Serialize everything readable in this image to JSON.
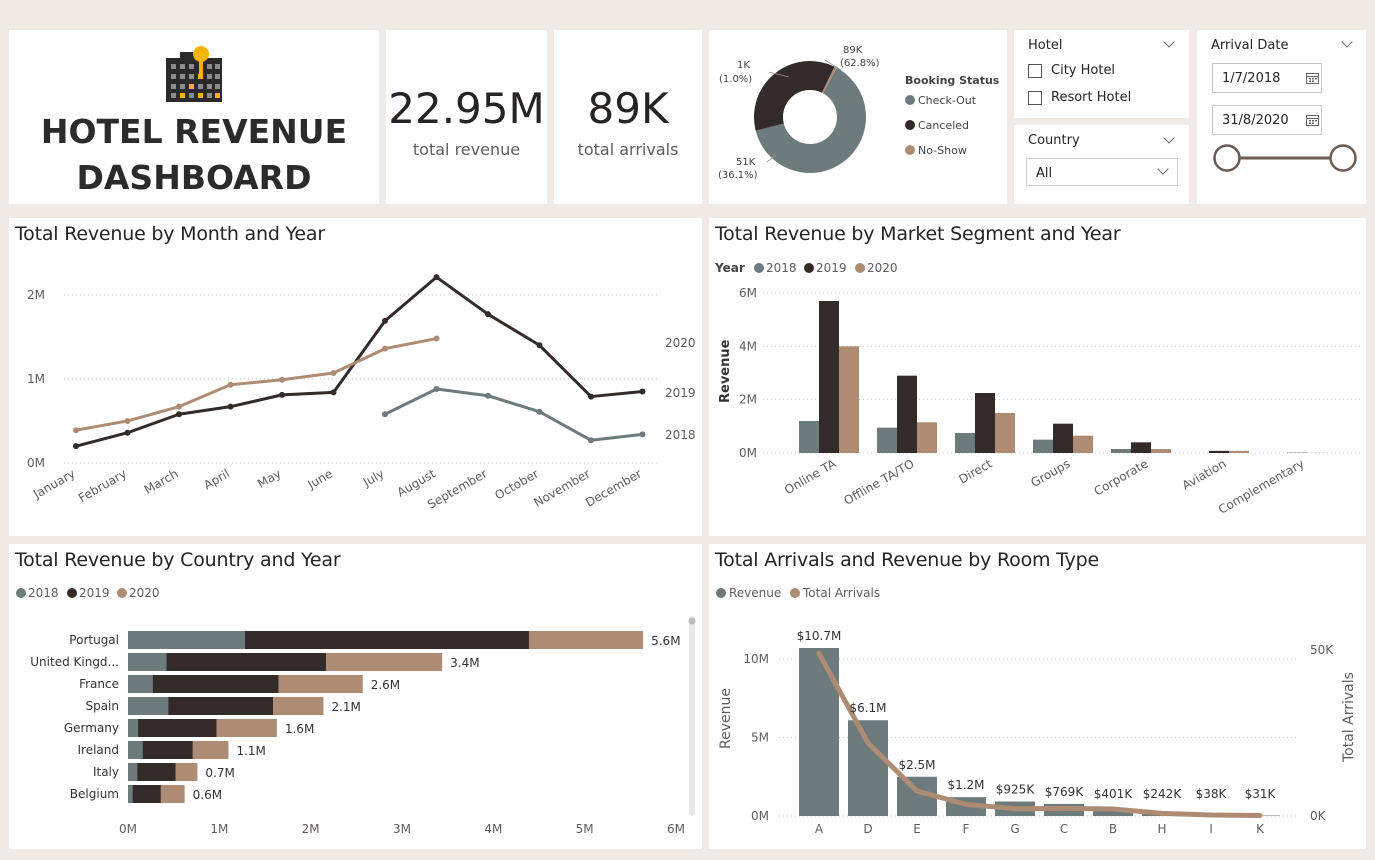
{
  "header": {
    "title_line1": "HOTEL REVENUE",
    "title_line2": "DASHBOARD"
  },
  "kpis": [
    {
      "value": "22.95M",
      "label": "total revenue"
    },
    {
      "value": "89K",
      "label": "total arrivals"
    }
  ],
  "colors": {
    "y2018": "#6d7b7c",
    "y2019": "#332a2a",
    "y2020": "#ae8c74",
    "background": "#f1ebe8"
  },
  "booking_status": {
    "title": "Booking Status",
    "legend": [
      "Check-Out",
      "Canceled",
      "No-Show"
    ],
    "labels": [
      {
        "value": "89K",
        "pct": "(62.8%)"
      },
      {
        "value": "51K",
        "pct": "(36.1%)"
      },
      {
        "value": "1K",
        "pct": "(1.0%)"
      }
    ]
  },
  "slicers": {
    "hotel": {
      "title": "Hotel",
      "options": [
        "City Hotel",
        "Resort Hotel"
      ]
    },
    "country": {
      "title": "Country",
      "selected": "All"
    },
    "arrival_date": {
      "title": "Arrival Date",
      "start": "1/7/2018",
      "end": "31/8/2020"
    }
  },
  "month_chart": {
    "title": "Total Revenue by Month and Year",
    "y_ticks": [
      "0M",
      "1M",
      "2M"
    ],
    "months": [
      "January",
      "February",
      "March",
      "April",
      "May",
      "June",
      "July",
      "August",
      "September",
      "October",
      "November",
      "December"
    ],
    "series_labels": [
      "2020",
      "2019",
      "2018"
    ]
  },
  "segment_chart": {
    "title": "Total Revenue by Market Segment and Year",
    "legend_title": "Year",
    "legend": [
      "2018",
      "2019",
      "2020"
    ],
    "ylabel": "Revenue",
    "y_ticks": [
      "0M",
      "2M",
      "4M",
      "6M"
    ],
    "categories": [
      "Online TA",
      "Offline TA/TO",
      "Direct",
      "Groups",
      "Corporate",
      "Aviation",
      "Complementary"
    ]
  },
  "country_chart": {
    "title": "Total Revenue by Country and Year",
    "legend": [
      "2018",
      "2019",
      "2020"
    ],
    "x_ticks": [
      "0M",
      "1M",
      "2M",
      "3M",
      "4M",
      "5M",
      "6M"
    ],
    "countries": [
      "Portugal",
      "United Kingd...",
      "France",
      "Spain",
      "Germany",
      "Ireland",
      "Italy",
      "Belgium"
    ],
    "totals": [
      "5.6M",
      "3.4M",
      "2.6M",
      "2.1M",
      "1.6M",
      "1.1M",
      "0.7M",
      "0.6M"
    ]
  },
  "room_chart": {
    "title": "Total Arrivals and Revenue by Room Type",
    "legend": [
      "Revenue",
      "Total Arrivals"
    ],
    "ylabel": "Revenue",
    "y2label": "Total Arrivals",
    "y_ticks": [
      "0M",
      "5M",
      "10M"
    ],
    "y2_ticks": [
      "0K",
      "50K"
    ],
    "categories": [
      "A",
      "D",
      "E",
      "F",
      "G",
      "C",
      "B",
      "H",
      "I",
      "K"
    ],
    "value_labels": [
      "$10.7M",
      "$6.1M",
      "$2.5M",
      "$1.2M",
      "$925K",
      "$769K",
      "$401K",
      "$242K",
      "$38K",
      "$31K"
    ]
  },
  "chart_data": [
    {
      "type": "line",
      "title": "Total Revenue by Month and Year",
      "x": [
        "January",
        "February",
        "March",
        "April",
        "May",
        "June",
        "July",
        "August",
        "September",
        "October",
        "November",
        "December"
      ],
      "ylim": [
        0,
        2200000
      ],
      "series": [
        {
          "name": "2018",
          "values": [
            null,
            null,
            null,
            null,
            null,
            null,
            580000,
            880000,
            800000,
            610000,
            270000,
            340000
          ]
        },
        {
          "name": "2019",
          "values": [
            200000,
            360000,
            580000,
            670000,
            810000,
            840000,
            1690000,
            2210000,
            1770000,
            1400000,
            790000,
            850000
          ]
        },
        {
          "name": "2020",
          "values": [
            390000,
            500000,
            670000,
            930000,
            990000,
            1070000,
            1360000,
            1480000,
            null,
            null,
            null,
            null
          ]
        }
      ]
    },
    {
      "type": "bar",
      "title": "Total Revenue by Market Segment and Year",
      "categories": [
        "Online TA",
        "Offline TA/TO",
        "Direct",
        "Groups",
        "Corporate",
        "Aviation",
        "Complementary"
      ],
      "ylabel": "Revenue",
      "ylim": [
        0,
        6000000
      ],
      "series": [
        {
          "name": "2018",
          "values": [
            1200000,
            950000,
            750000,
            500000,
            150000,
            0,
            0
          ]
        },
        {
          "name": "2019",
          "values": [
            5700000,
            2900000,
            2250000,
            1100000,
            400000,
            80000,
            10000
          ]
        },
        {
          "name": "2020",
          "values": [
            4000000,
            1150000,
            1500000,
            650000,
            150000,
            80000,
            5000
          ]
        }
      ]
    },
    {
      "type": "bar",
      "orientation": "horizontal-stacked",
      "title": "Total Revenue by Country and Year",
      "categories": [
        "Portugal",
        "United Kingd...",
        "France",
        "Spain",
        "Germany",
        "Ireland",
        "Italy",
        "Belgium"
      ],
      "xlim": [
        0,
        6000000
      ],
      "series": [
        {
          "name": "2018",
          "values": [
            1280000,
            420000,
            270000,
            440000,
            110000,
            160000,
            100000,
            50000
          ]
        },
        {
          "name": "2019",
          "values": [
            3110000,
            1750000,
            1380000,
            1150000,
            860000,
            550000,
            420000,
            310000
          ]
        },
        {
          "name": "2020",
          "values": [
            1250000,
            1270000,
            920000,
            550000,
            660000,
            390000,
            240000,
            260000
          ]
        }
      ]
    },
    {
      "type": "bar",
      "title": "Total Arrivals and Revenue by Room Type",
      "categories": [
        "A",
        "D",
        "E",
        "F",
        "G",
        "C",
        "B",
        "H",
        "I",
        "K"
      ],
      "ylabel": "Revenue",
      "y2label": "Total Arrivals",
      "ylim": [
        0,
        11500000
      ],
      "y2lim": [
        0,
        55000
      ],
      "series": [
        {
          "name": "Revenue",
          "values": [
            10700000,
            6100000,
            2500000,
            1200000,
            925000,
            769000,
            401000,
            242000,
            38000,
            31000
          ]
        },
        {
          "name": "Total Arrivals",
          "axis": "secondary",
          "values": [
            49000,
            22000,
            7500,
            3500,
            2200,
            2300,
            2100,
            800,
            300,
            150
          ]
        }
      ]
    }
  ]
}
